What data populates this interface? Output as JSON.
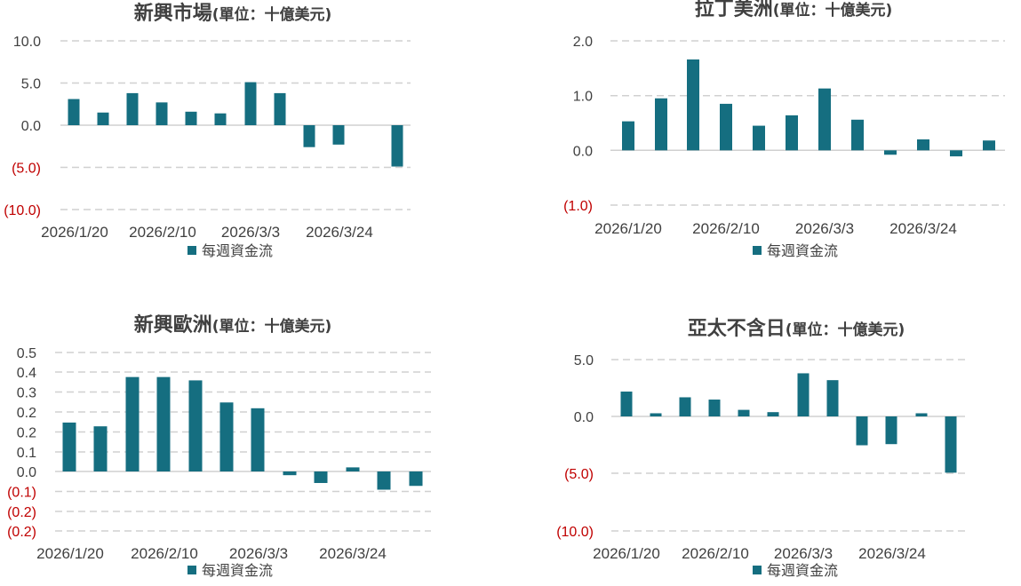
{
  "colors": {
    "bar": "#156e80",
    "text": "#404040",
    "negative_tick": "#c00000",
    "grid": "#d0d0d0"
  },
  "chart_data": [
    {
      "type": "bar",
      "title": "新興市場",
      "subtitle": "(單位：十億美元)",
      "series": [
        {
          "name": "每週資金流",
          "values": [
            3.1,
            1.5,
            3.8,
            2.7,
            1.6,
            1.4,
            5.1,
            3.8,
            -2.6,
            -2.3,
            0,
            -4.9
          ]
        }
      ],
      "x_tick_labels": [
        "2026/1/20",
        "2026/2/10",
        "2026/3/3",
        "2026/3/24"
      ],
      "y_tick_labels": [
        "10.0",
        "5.0",
        "0.0",
        "(5.0)",
        "(10.0)"
      ],
      "ylim": [
        -10,
        10
      ],
      "grid": true,
      "legend_position": "bottom"
    },
    {
      "type": "bar",
      "title": "拉丁美洲",
      "subtitle": "(單位：十億美元)",
      "series": [
        {
          "name": "每週資金流",
          "values": [
            0.53,
            0.95,
            1.66,
            0.85,
            0.45,
            0.64,
            1.13,
            0.56,
            -0.08,
            0.2,
            -0.11,
            0.18
          ]
        }
      ],
      "x_tick_labels": [
        "2026/1/20",
        "2026/2/10",
        "2026/3/3",
        "2026/3/24"
      ],
      "y_tick_labels": [
        "2.0",
        "1.0",
        "0.0",
        "(1.0)"
      ],
      "ylim": [
        -1,
        2
      ],
      "grid": true,
      "legend_position": "bottom"
    },
    {
      "type": "bar",
      "title": "新興歐洲",
      "subtitle": "(單位：十億美元)",
      "series": [
        {
          "name": "每週資金流",
          "values": [
            0.186,
            0.169,
            0.39,
            0.39,
            0.375,
            0.276,
            0.25,
            -0.05,
            -0.085,
            -0.015,
            -0.115,
            -0.098
          ]
        }
      ],
      "x_tick_labels": [
        "2026/1/20",
        "2026/2/10",
        "2026/3/3",
        "2026/3/24"
      ],
      "y_tick_labels": [
        "0.5",
        "0.4",
        "0.3",
        "0.2",
        "0.2",
        "0.1",
        "0.0",
        "(0.1)",
        "(0.2)",
        "(0.2)"
      ],
      "ylim": [
        -0.3,
        0.5
      ],
      "grid": true,
      "legend_position": "bottom"
    },
    {
      "type": "bar",
      "title": "亞太不含日",
      "subtitle": "(單位：十億美元)",
      "series": [
        {
          "name": "每週資金流",
          "values": [
            2.2,
            0.3,
            1.7,
            1.5,
            0.6,
            0.4,
            3.8,
            3.2,
            -2.5,
            -2.4,
            0.3,
            -4.9
          ]
        }
      ],
      "x_tick_labels": [
        "2026/1/20",
        "2026/2/10",
        "2026/3/3",
        "2026/3/24"
      ],
      "y_tick_labels": [
        "5.0",
        "0.0",
        "(5.0)",
        "(10.0)"
      ],
      "ylim": [
        -10,
        5
      ],
      "grid": true,
      "legend_position": "bottom"
    }
  ]
}
